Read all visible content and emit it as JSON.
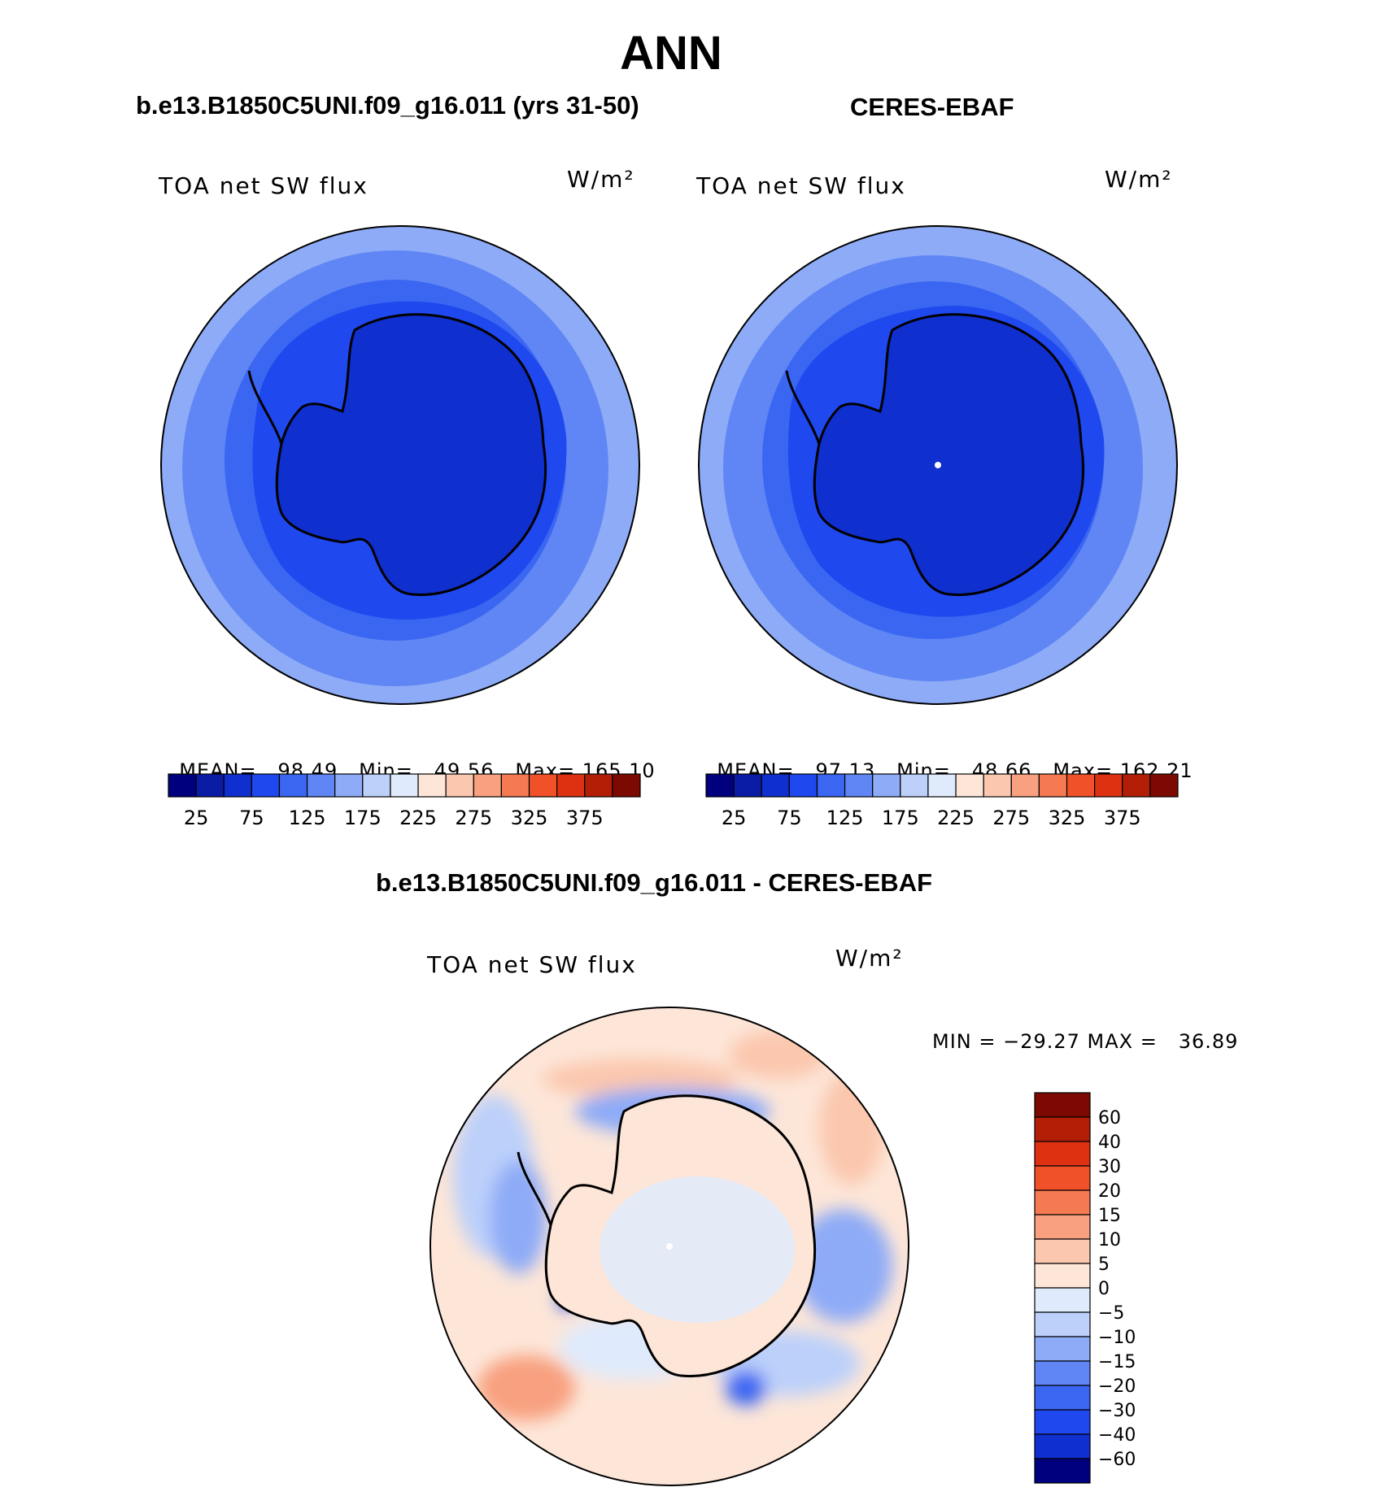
{
  "page": {
    "title": "ANN",
    "left_case": "b.e13.B1850C5UNI.f09_g16.011 (yrs 31-50)",
    "right_case": "CERES-EBAF",
    "diff_case": "b.e13.B1850C5UNI.f09_g16.011 - CERES-EBAF"
  },
  "chart_data": [
    {
      "type": "heatmap",
      "projection": "south-polar-stereographic",
      "variable": "TOA net SW flux",
      "units": "W/m²",
      "stats": {
        "mean_label": "MEAN=",
        "mean": "98.49",
        "min_label": "Min=",
        "min": "49.56",
        "max_label": "Max=",
        "max": "165.10"
      },
      "colorbar_ticks": [
        "25",
        "75",
        "125",
        "175",
        "225",
        "275",
        "325",
        "375"
      ],
      "colorbar_levels": [
        25,
        50,
        75,
        100,
        125,
        150,
        175,
        200,
        225,
        250,
        275,
        300,
        325,
        350,
        375
      ],
      "colors": [
        "#00007f",
        "#0a1ba6",
        "#0f2fcf",
        "#1f48ee",
        "#3a66f2",
        "#5f86f4",
        "#8eabf7",
        "#bcd0fa",
        "#dfeafc",
        "#fde6d8",
        "#fbc7ae",
        "#f8a07f",
        "#f57a51",
        "#f05128",
        "#de3111",
        "#b31e06",
        "#7c0a02"
      ]
    },
    {
      "type": "heatmap",
      "projection": "south-polar-stereographic",
      "variable": "TOA net SW flux",
      "units": "W/m²",
      "stats": {
        "mean_label": "MEAN=",
        "mean": "97.13",
        "min_label": "Min=",
        "min": "48.66",
        "max_label": "Max=",
        "max": "162.21"
      },
      "colorbar_ticks": [
        "25",
        "75",
        "125",
        "175",
        "225",
        "275",
        "325",
        "375"
      ],
      "colorbar_levels": [
        25,
        50,
        75,
        100,
        125,
        150,
        175,
        200,
        225,
        250,
        275,
        300,
        325,
        350,
        375
      ],
      "colors": [
        "#00007f",
        "#0a1ba6",
        "#0f2fcf",
        "#1f48ee",
        "#3a66f2",
        "#5f86f4",
        "#8eabf7",
        "#bcd0fa",
        "#dfeafc",
        "#fde6d8",
        "#fbc7ae",
        "#f8a07f",
        "#f57a51",
        "#f05128",
        "#de3111",
        "#b31e06",
        "#7c0a02"
      ]
    },
    {
      "type": "heatmap",
      "projection": "south-polar-stereographic",
      "variable": "TOA net SW flux",
      "units": "W/m²",
      "stats_text": "MIN = −29.27 MAX =   36.89",
      "colorbar_ticks": [
        "60",
        "40",
        "30",
        "20",
        "15",
        "10",
        "5",
        "0",
        "−5",
        "−10",
        "−15",
        "−20",
        "−30",
        "−40",
        "−60"
      ],
      "colorbar_levels": [
        60,
        40,
        30,
        20,
        15,
        10,
        5,
        0,
        -5,
        -10,
        -15,
        -20,
        -30,
        -40,
        -60
      ],
      "colors": [
        "#7c0a02",
        "#b31e06",
        "#de3111",
        "#f05128",
        "#f57a51",
        "#f8a07f",
        "#fbc7ae",
        "#fde6d8",
        "#dfeafc",
        "#bcd0fa",
        "#8eabf7",
        "#5f86f4",
        "#3a66f2",
        "#1f48ee",
        "#0f2fcf",
        "#00007f"
      ]
    }
  ]
}
